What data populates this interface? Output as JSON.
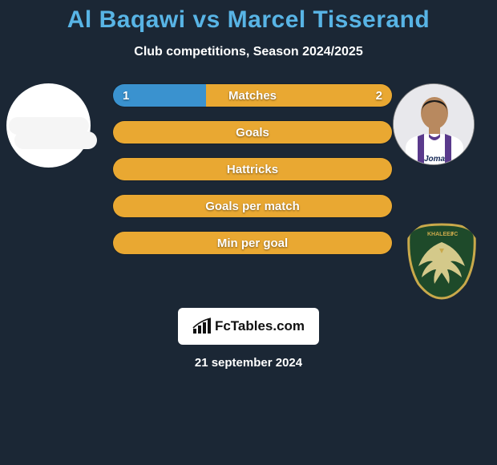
{
  "colors": {
    "background": "#1b2735",
    "title": "#58b4e5",
    "subtitle": "#ffffff",
    "bar_left": "#3a92cf",
    "bar_right": "#e9a832",
    "bar_neutral": "#e9a832",
    "date_text": "#ffffff",
    "branding_bg": "#ffffff",
    "branding_text": "#111111"
  },
  "title": {
    "left": "Al Baqawi",
    "vs": "vs",
    "right": "Marcel Tisserand"
  },
  "subtitle": "Club competitions, Season 2024/2025",
  "bars": [
    {
      "label": "Matches",
      "left_value": "1",
      "right_value": "2",
      "left_pct": 33.3,
      "right_pct": 66.7,
      "left_color": "#3a92cf",
      "right_color": "#e9a832"
    },
    {
      "label": "Goals",
      "left_value": "",
      "right_value": "",
      "left_pct": 0,
      "right_pct": 100,
      "left_color": "#3a92cf",
      "right_color": "#e9a832"
    },
    {
      "label": "Hattricks",
      "left_value": "",
      "right_value": "",
      "left_pct": 0,
      "right_pct": 100,
      "left_color": "#3a92cf",
      "right_color": "#e9a832"
    },
    {
      "label": "Goals per match",
      "left_value": "",
      "right_value": "",
      "left_pct": 0,
      "right_pct": 100,
      "left_color": "#3a92cf",
      "right_color": "#e9a832"
    },
    {
      "label": "Min per goal",
      "left_value": "",
      "right_value": "",
      "left_pct": 0,
      "right_pct": 100,
      "left_color": "#3a92cf",
      "right_color": "#e9a832"
    }
  ],
  "branding": "FcTables.com",
  "date": "21 september 2024",
  "right_player": {
    "skin": "#b8895f",
    "jersey_body": "#ffffff",
    "jersey_stripe": "#5a3a8c",
    "sponsor": "Joma"
  },
  "right_club": {
    "shield_bg": "#1e4a2a",
    "shield_border": "#c9a94b",
    "eagle": "#d4c98a",
    "text_top": "KHALEEJ"
  }
}
